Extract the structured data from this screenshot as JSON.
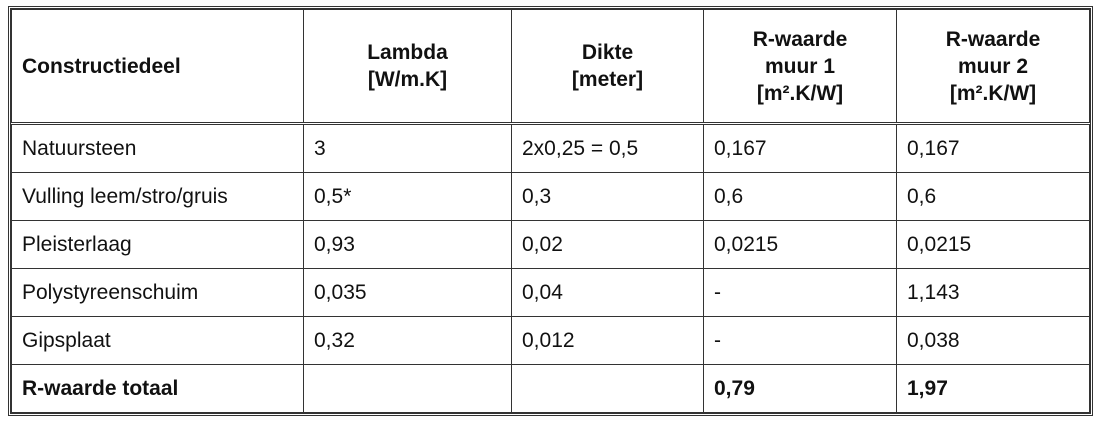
{
  "table": {
    "header": [
      [
        "Constructiedeel"
      ],
      [
        "Lambda",
        "[W/m.K]"
      ],
      [
        "Dikte",
        "[meter]"
      ],
      [
        "R-waarde",
        "muur 1",
        "[m².K/W]"
      ],
      [
        "R-waarde",
        "muur 2",
        "[m².K/W]"
      ]
    ],
    "rows": [
      [
        "Natuursteen",
        "3",
        "2x0,25 = 0,5",
        "0,167",
        "0,167"
      ],
      [
        "Vulling leem/stro/gruis",
        "0,5*",
        "0,3",
        "0,6",
        "0,6"
      ],
      [
        "Pleisterlaag",
        "0,93",
        "0,02",
        "0,0215",
        "0,0215"
      ],
      [
        "Polystyreenschuim",
        "0,035",
        "0,04",
        "-",
        "1,143"
      ],
      [
        "Gipsplaat",
        "0,32",
        "0,012",
        "-",
        "0,038"
      ],
      [
        "R-waarde totaal",
        null,
        null,
        "0,79",
        "1,97"
      ]
    ],
    "bold_rows": [
      5
    ]
  }
}
